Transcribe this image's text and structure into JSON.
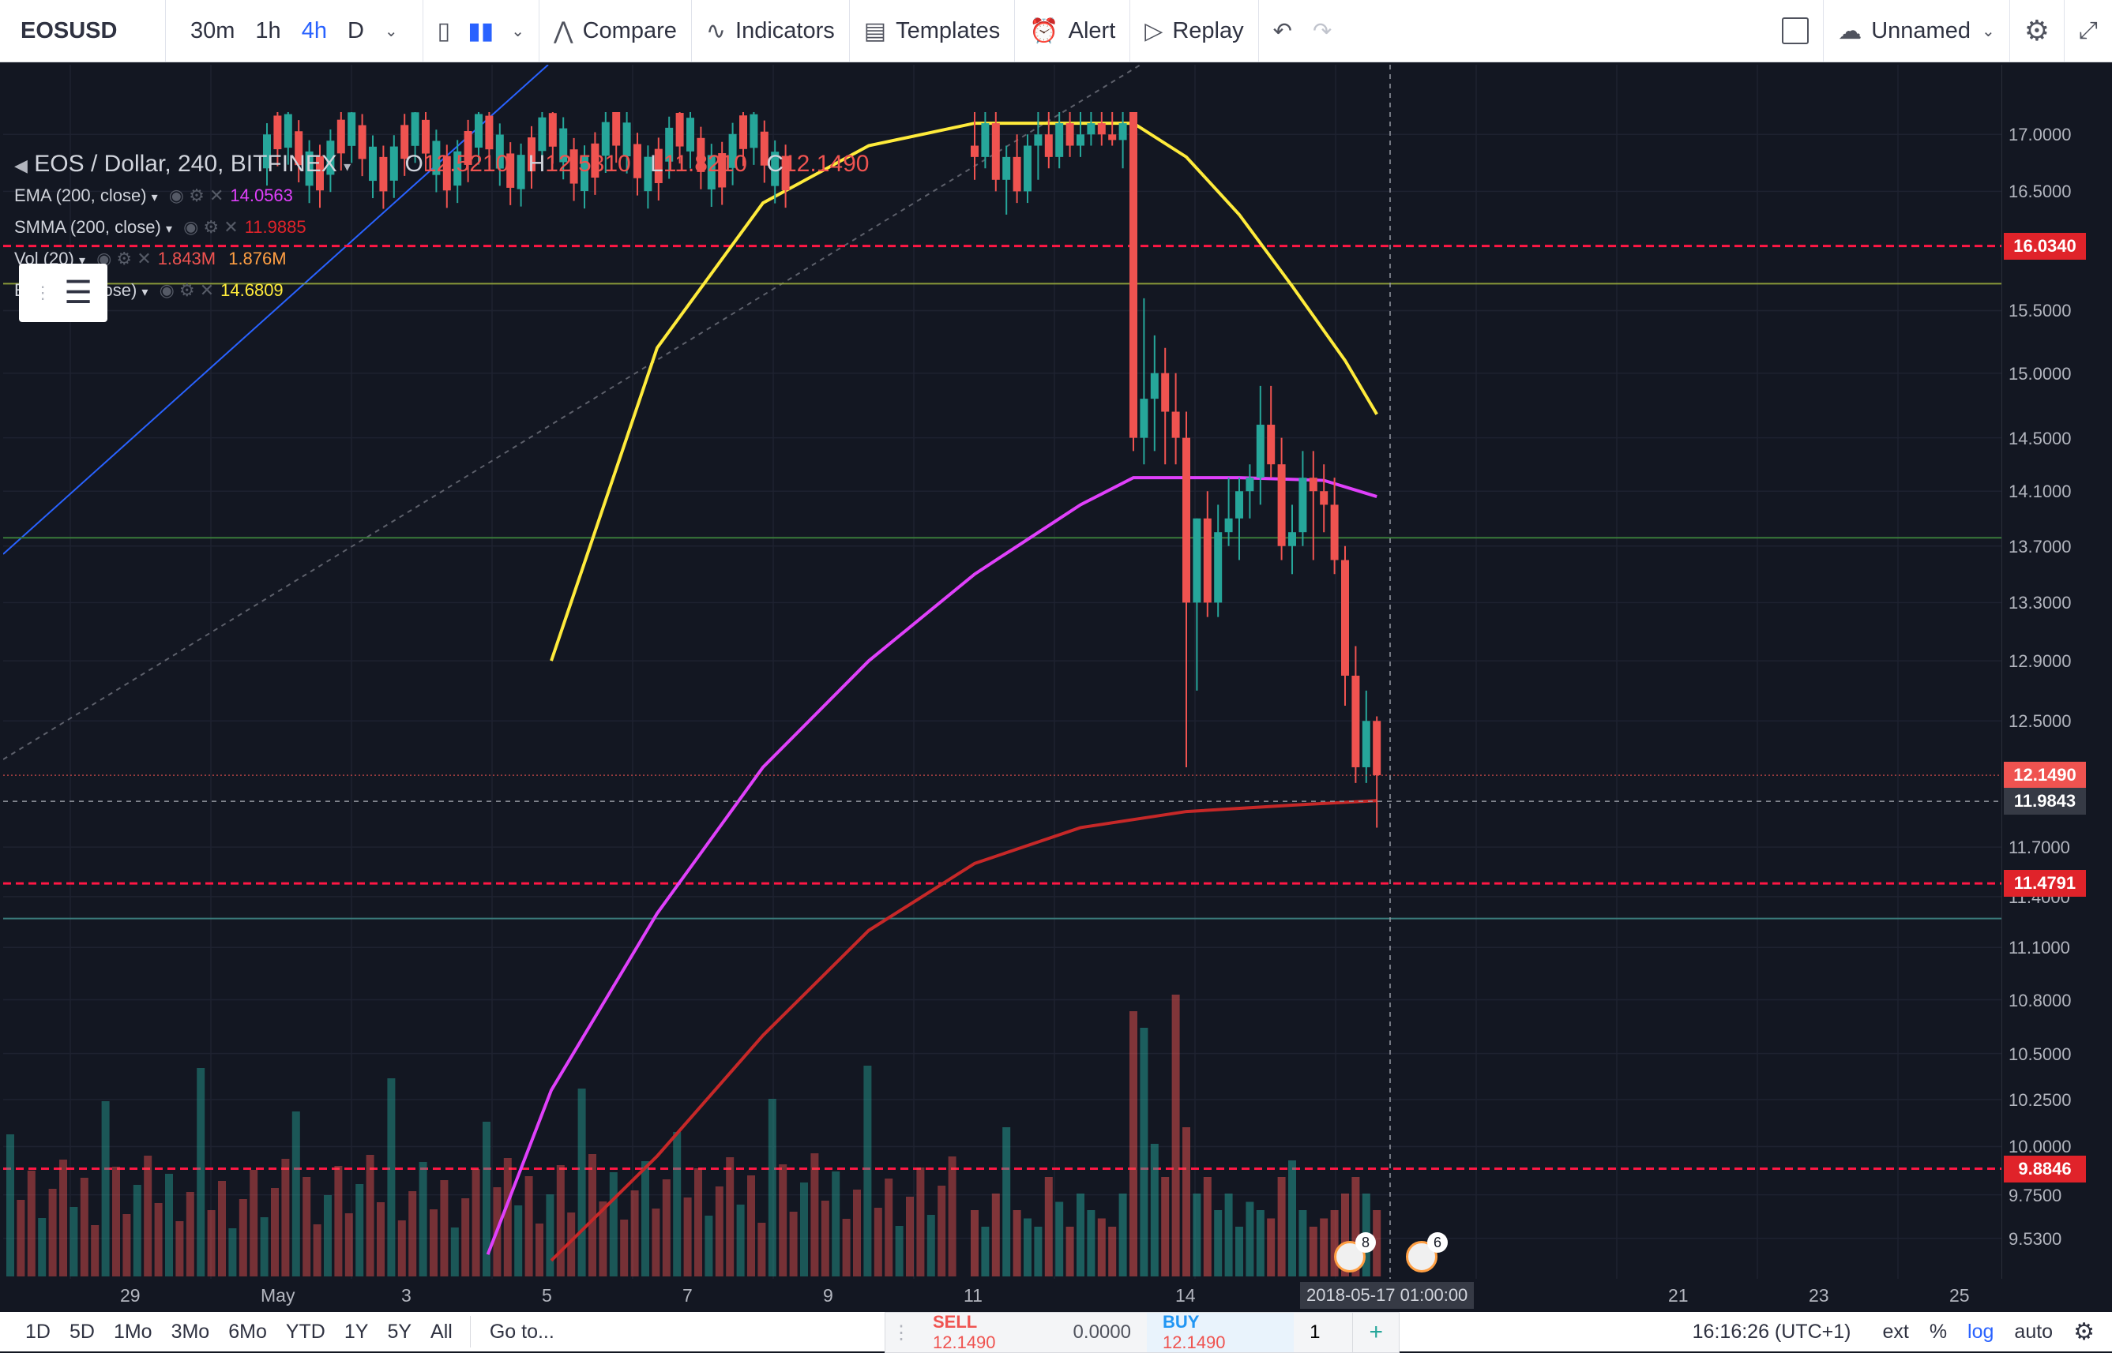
{
  "toolbar": {
    "symbol": "EOSUSD",
    "intervals": [
      "30m",
      "1h",
      "4h",
      "D"
    ],
    "active_interval": "4h",
    "compare": "Compare",
    "indicators": "Indicators",
    "templates": "Templates",
    "alert": "Alert",
    "replay": "Replay",
    "layout_name": "Unnamed"
  },
  "legend": {
    "title": "EOS / Dollar, 240, BITFINEX",
    "ohlc": {
      "o_label": "O",
      "o": "12.5210",
      "h_label": "H",
      "h": "12.5310",
      "l_label": "L",
      "l": "11.8210",
      "c_label": "C",
      "c": "12.1490"
    },
    "indicators": [
      {
        "name": "EMA (200, close)",
        "value": "14.0563",
        "color": "#e040fb"
      },
      {
        "name": "SMMA (200, close)",
        "value": "11.9885",
        "color": "#e0232a"
      },
      {
        "name": "Vol (20)",
        "value": "1.843M",
        "value2": "1.876M",
        "color": "#ff9f43"
      },
      {
        "name": "EMA (50, close)",
        "value": "14.6809",
        "color": "#ffeb3b"
      }
    ]
  },
  "price_axis": {
    "labels": [
      "17.0000",
      "16.5000",
      "15.5000",
      "15.0000",
      "14.5000",
      "14.1000",
      "13.7000",
      "13.3000",
      "12.9000",
      "12.5000",
      "11.7000",
      "11.4000",
      "11.1000",
      "10.8000",
      "10.5000",
      "10.2500",
      "10.0000",
      "9.7500",
      "9.5300"
    ],
    "tags": [
      {
        "value": "16.0340",
        "color": "#e0232a"
      },
      {
        "value": "12.1490",
        "color": "#ef5350"
      },
      {
        "value": "11.9843",
        "color": "#363a45"
      },
      {
        "value": "11.4791",
        "color": "#e0232a"
      },
      {
        "value": "9.8846",
        "color": "#e0232a"
      }
    ]
  },
  "time_axis": {
    "labels": [
      "29",
      "May",
      "3",
      "5",
      "7",
      "9",
      "11",
      "14",
      "21",
      "23",
      "25"
    ],
    "crosshair": "2018-05-17 01:00:00"
  },
  "events": [
    {
      "count": "8"
    },
    {
      "count": "6"
    }
  ],
  "bottombar": {
    "ranges": [
      "1D",
      "5D",
      "1Mo",
      "3Mo",
      "6Mo",
      "YTD",
      "1Y",
      "5Y",
      "All"
    ],
    "goto": "Go to...",
    "time": "16:16:26 (UTC+1)",
    "ext": "ext",
    "percent": "%",
    "log": "log",
    "auto": "auto"
  },
  "trade": {
    "sell_label": "SELL",
    "sell_price": "12.1490",
    "spread": "0.0000",
    "buy_label": "BUY",
    "buy_price": "12.1490",
    "qty": "1"
  },
  "colors": {
    "background": "#131722",
    "up_candle": "#26a69a",
    "down_candle": "#ef5350",
    "ema50": "#ffeb3b",
    "ema200": "#e040fb",
    "smma200": "#c62828",
    "hline_red": "#ff1744"
  },
  "chart_data": {
    "type": "candlestick",
    "ylim": [
      9.4,
      17.2
    ],
    "log_scale": true,
    "candles": [
      {
        "i": 0,
        "o": 16.9,
        "h": 17.2,
        "l": 16.6,
        "c": 16.8
      },
      {
        "i": 1,
        "o": 16.8,
        "h": 17.2,
        "l": 16.7,
        "c": 17.1
      },
      {
        "i": 2,
        "o": 17.1,
        "h": 17.2,
        "l": 16.5,
        "c": 16.6
      },
      {
        "i": 3,
        "o": 16.6,
        "h": 16.9,
        "l": 16.3,
        "c": 16.8
      },
      {
        "i": 4,
        "o": 16.8,
        "h": 17.0,
        "l": 16.4,
        "c": 16.5
      },
      {
        "i": 5,
        "o": 16.5,
        "h": 17.0,
        "l": 16.4,
        "c": 16.9
      },
      {
        "i": 6,
        "o": 16.9,
        "h": 17.2,
        "l": 16.6,
        "c": 17.0
      },
      {
        "i": 7,
        "o": 17.0,
        "h": 17.2,
        "l": 16.7,
        "c": 16.8
      },
      {
        "i": 8,
        "o": 16.8,
        "h": 17.2,
        "l": 16.7,
        "c": 17.1
      },
      {
        "i": 9,
        "o": 17.1,
        "h": 17.2,
        "l": 16.8,
        "c": 16.9
      },
      {
        "i": 10,
        "o": 16.9,
        "h": 17.2,
        "l": 16.8,
        "c": 17.0
      },
      {
        "i": 11,
        "o": 17.0,
        "h": 17.2,
        "l": 16.9,
        "c": 17.1
      },
      {
        "i": 12,
        "o": 17.1,
        "h": 17.2,
        "l": 16.9,
        "c": 17.0
      },
      {
        "i": 13,
        "o": 17.0,
        "h": 17.2,
        "l": 16.9,
        "c": 16.95
      },
      {
        "i": 14,
        "o": 16.95,
        "h": 17.2,
        "l": 16.7,
        "c": 17.1
      },
      {
        "i": 15,
        "o": 17.2,
        "h": 17.2,
        "l": 14.4,
        "c": 14.5
      },
      {
        "i": 16,
        "o": 14.5,
        "h": 15.6,
        "l": 14.3,
        "c": 14.8
      },
      {
        "i": 17,
        "o": 14.8,
        "h": 15.3,
        "l": 14.4,
        "c": 15.0
      },
      {
        "i": 18,
        "o": 15.0,
        "h": 15.2,
        "l": 14.3,
        "c": 14.7
      },
      {
        "i": 19,
        "o": 14.7,
        "h": 15.0,
        "l": 14.3,
        "c": 14.5
      },
      {
        "i": 20,
        "o": 14.5,
        "h": 14.7,
        "l": 12.2,
        "c": 13.3
      },
      {
        "i": 21,
        "o": 13.3,
        "h": 13.9,
        "l": 12.7,
        "c": 13.9
      },
      {
        "i": 22,
        "o": 13.9,
        "h": 14.1,
        "l": 13.2,
        "c": 13.3
      },
      {
        "i": 23,
        "o": 13.3,
        "h": 14.0,
        "l": 13.2,
        "c": 13.8
      },
      {
        "i": 24,
        "o": 13.8,
        "h": 14.2,
        "l": 13.7,
        "c": 13.9
      },
      {
        "i": 25,
        "o": 13.9,
        "h": 14.2,
        "l": 13.6,
        "c": 14.1
      },
      {
        "i": 26,
        "o": 14.1,
        "h": 14.3,
        "l": 13.9,
        "c": 14.2
      },
      {
        "i": 27,
        "o": 14.2,
        "h": 14.9,
        "l": 14.0,
        "c": 14.6
      },
      {
        "i": 28,
        "o": 14.6,
        "h": 14.9,
        "l": 14.2,
        "c": 14.3
      },
      {
        "i": 29,
        "o": 14.3,
        "h": 14.5,
        "l": 13.6,
        "c": 13.7
      },
      {
        "i": 30,
        "o": 13.7,
        "h": 14.0,
        "l": 13.5,
        "c": 13.8
      },
      {
        "i": 31,
        "o": 13.8,
        "h": 14.4,
        "l": 13.7,
        "c": 14.2
      },
      {
        "i": 32,
        "o": 14.2,
        "h": 14.4,
        "l": 13.6,
        "c": 14.1
      },
      {
        "i": 33,
        "o": 14.1,
        "h": 14.3,
        "l": 13.8,
        "c": 14.0
      },
      {
        "i": 34,
        "o": 14.0,
        "h": 14.2,
        "l": 13.5,
        "c": 13.6
      },
      {
        "i": 35,
        "o": 13.6,
        "h": 13.7,
        "l": 12.6,
        "c": 12.8
      },
      {
        "i": 36,
        "o": 12.8,
        "h": 13.0,
        "l": 12.1,
        "c": 12.2
      },
      {
        "i": 37,
        "o": 12.2,
        "h": 12.7,
        "l": 12.1,
        "c": 12.5
      },
      {
        "i": 38,
        "o": 12.5,
        "h": 12.53,
        "l": 11.82,
        "c": 12.149
      }
    ],
    "ema50": [
      {
        "i": -40,
        "v": 12.9
      },
      {
        "i": -30,
        "v": 15.2
      },
      {
        "i": -20,
        "v": 16.4
      },
      {
        "i": -10,
        "v": 16.9
      },
      {
        "i": 0,
        "v": 17.1
      },
      {
        "i": 15,
        "v": 17.1
      },
      {
        "i": 20,
        "v": 16.8
      },
      {
        "i": 25,
        "v": 16.3
      },
      {
        "i": 30,
        "v": 15.7
      },
      {
        "i": 35,
        "v": 15.1
      },
      {
        "i": 38,
        "v": 14.68
      }
    ],
    "ema200": [
      {
        "i": -46,
        "v": 9.45
      },
      {
        "i": -40,
        "v": 10.3
      },
      {
        "i": -30,
        "v": 11.3
      },
      {
        "i": -20,
        "v": 12.2
      },
      {
        "i": -10,
        "v": 12.9
      },
      {
        "i": 0,
        "v": 13.5
      },
      {
        "i": 10,
        "v": 14.0
      },
      {
        "i": 15,
        "v": 14.2
      },
      {
        "i": 25,
        "v": 14.2
      },
      {
        "i": 33,
        "v": 14.18
      },
      {
        "i": 38,
        "v": 14.06
      }
    ],
    "smma200": [
      {
        "i": -40,
        "v": 9.42
      },
      {
        "i": -30,
        "v": 9.95
      },
      {
        "i": -20,
        "v": 10.6
      },
      {
        "i": -10,
        "v": 11.2
      },
      {
        "i": 0,
        "v": 11.6
      },
      {
        "i": 10,
        "v": 11.82
      },
      {
        "i": 20,
        "v": 11.92
      },
      {
        "i": 30,
        "v": 11.96
      },
      {
        "i": 38,
        "v": 11.9885
      }
    ],
    "hlines": [
      {
        "value": 16.034,
        "style": "dashed",
        "color": "#ff1744"
      },
      {
        "value": 15.72,
        "style": "solid",
        "color": "#8a9a3a"
      },
      {
        "value": 13.76,
        "style": "solid",
        "color": "#3a7a3a"
      },
      {
        "value": 11.4791,
        "style": "dashed",
        "color": "#ff1744"
      },
      {
        "value": 11.27,
        "style": "solid",
        "color": "#3a7a7a"
      },
      {
        "value": 9.8846,
        "style": "dashed",
        "color": "#ff1744"
      }
    ],
    "volumes": [
      0.4,
      0.3,
      0.5,
      0.9,
      0.4,
      0.35,
      0.3,
      0.6,
      0.45,
      0.3,
      0.5,
      0.4,
      0.35,
      0.3,
      0.5,
      1.6,
      1.5,
      0.8,
      0.6,
      1.7,
      0.9,
      0.5,
      0.6,
      0.4,
      0.5,
      0.3,
      0.45,
      0.4,
      0.35,
      0.6,
      0.7,
      0.4,
      0.3,
      0.35,
      0.4,
      0.5,
      0.6,
      0.5,
      0.4
    ]
  }
}
